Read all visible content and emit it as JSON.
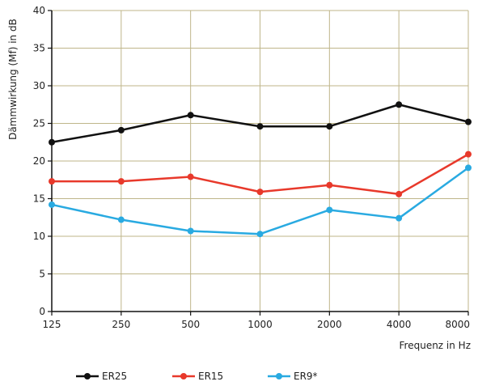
{
  "chart_data": {
    "type": "line",
    "title": "",
    "xlabel": "Frequenz in Hz",
    "ylabel": "Dämmwirkung (Mf) in dB",
    "categories": [
      "125",
      "250",
      "500",
      "1000",
      "2000",
      "4000",
      "8000"
    ],
    "ylim": [
      0,
      40
    ],
    "yticks": [
      0,
      5,
      10,
      15,
      20,
      25,
      30,
      35,
      40
    ],
    "grid": true,
    "legend_position": "bottom",
    "grid_color": "#bfb68a",
    "series": [
      {
        "name": "ER25",
        "color": "#111111",
        "values": [
          22.5,
          24.1,
          26.1,
          24.6,
          24.6,
          27.5,
          25.2
        ]
      },
      {
        "name": "ER15",
        "color": "#e8392b",
        "values": [
          17.3,
          17.3,
          17.9,
          15.9,
          16.8,
          15.6,
          20.9
        ]
      },
      {
        "name": "ER9*",
        "color": "#29aae1",
        "values": [
          14.2,
          12.2,
          10.7,
          10.3,
          13.5,
          12.4,
          19.1
        ]
      }
    ]
  }
}
